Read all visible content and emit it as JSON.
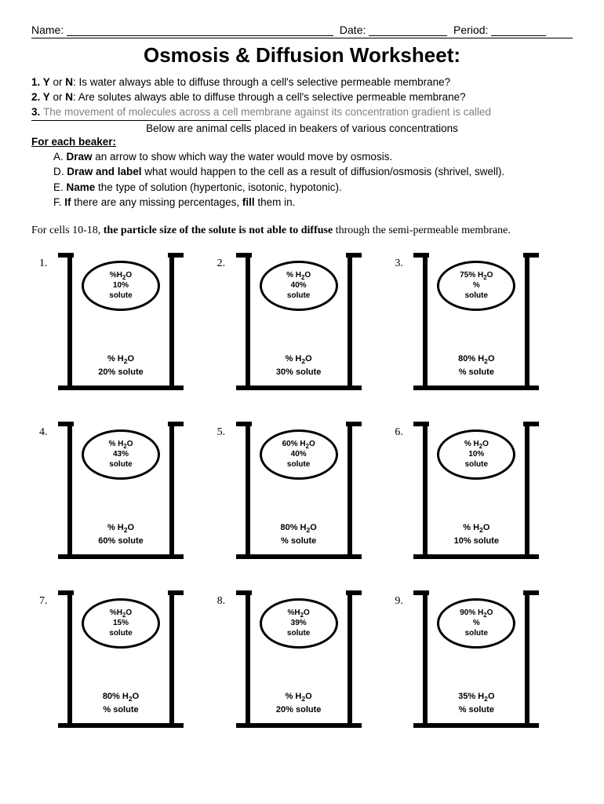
{
  "header": {
    "name_label": "Name:",
    "date_label": "Date:",
    "period_label": "Period:"
  },
  "title": "Osmosis & Diffusion Worksheet:",
  "questions": {
    "q1_prefix": "1. Y",
    "q1_or": " or ",
    "q1_n": "N",
    "q1_text": ": Is water always able to diffuse through a cell's selective permeable membrane?",
    "q2_prefix": "2. Y",
    "q2_or": " or ",
    "q2_n": "N",
    "q2_text": ": Are solutes always able to diffuse through a cell's selective permeable membrane?",
    "q3_prefix": "3. ",
    "q3_text": "The movement of molecules across a cell membrane against its concentration gradient is called"
  },
  "instructions": {
    "centered": "Below are animal cells placed in beakers of various concentrations",
    "for_each": "For each beaker:",
    "a_bold": "Draw",
    "a_rest": " an arrow to show which way the water would move by osmosis.",
    "d_bold": "Draw and label",
    "d_rest": " what would happen to the cell as a result of diffusion/osmosis (shrivel, swell).",
    "e_bold": "Name",
    "e_rest": " the type of solution (hypertonic, isotonic, hypotonic).",
    "f_bold": "If",
    "f_rest1": " there are any missing percentages, ",
    "f_bold2": "fill",
    "f_rest2": " them in."
  },
  "note": {
    "pre": "For cells 10-18, ",
    "bold": "the particle size of the solute is not able to diffuse",
    "post": " through the semi-permeable membrane."
  },
  "beakers": [
    {
      "num": "1.",
      "cell_h2o": "%H₂O",
      "cell_pct": "10%",
      "cell_sol": "solute",
      "out_h2o": "% H₂O",
      "out_sol": "20%  solute"
    },
    {
      "num": "2.",
      "cell_h2o": "% H₂O",
      "cell_pct": "40%",
      "cell_sol": "solute",
      "out_h2o": "% H₂O",
      "out_sol": "30%  solute"
    },
    {
      "num": "3.",
      "cell_h2o": "75% H₂O",
      "cell_pct": "%",
      "cell_sol": "solute",
      "out_h2o": "80% H₂O",
      "out_sol": "%  solute"
    },
    {
      "num": "4.",
      "cell_h2o": "% H₂O",
      "cell_pct": "43%",
      "cell_sol": "solute",
      "out_h2o": "% H₂O",
      "out_sol": "60%  solute"
    },
    {
      "num": "5.",
      "cell_h2o": "60% H₂O",
      "cell_pct": "40%",
      "cell_sol": "solute",
      "out_h2o": "80% H₂O",
      "out_sol": "%  solute"
    },
    {
      "num": "6.",
      "cell_h2o": "% H₂O",
      "cell_pct": "10%",
      "cell_sol": "solute",
      "out_h2o": "% H₂O",
      "out_sol": "10%  solute"
    },
    {
      "num": "7.",
      "cell_h2o": "%H₂O",
      "cell_pct": "15%",
      "cell_sol": "solute",
      "out_h2o": "80% H₂O",
      "out_sol": "%  solute"
    },
    {
      "num": "8.",
      "cell_h2o": "%H₂O",
      "cell_pct": "39%",
      "cell_sol": "solute",
      "out_h2o": "% H₂O",
      "out_sol": "20%  solute"
    },
    {
      "num": "9.",
      "cell_h2o": "90% H₂O",
      "cell_pct": "%",
      "cell_sol": "solute",
      "out_h2o": "35% H₂O",
      "out_sol": "%  solute"
    }
  ]
}
